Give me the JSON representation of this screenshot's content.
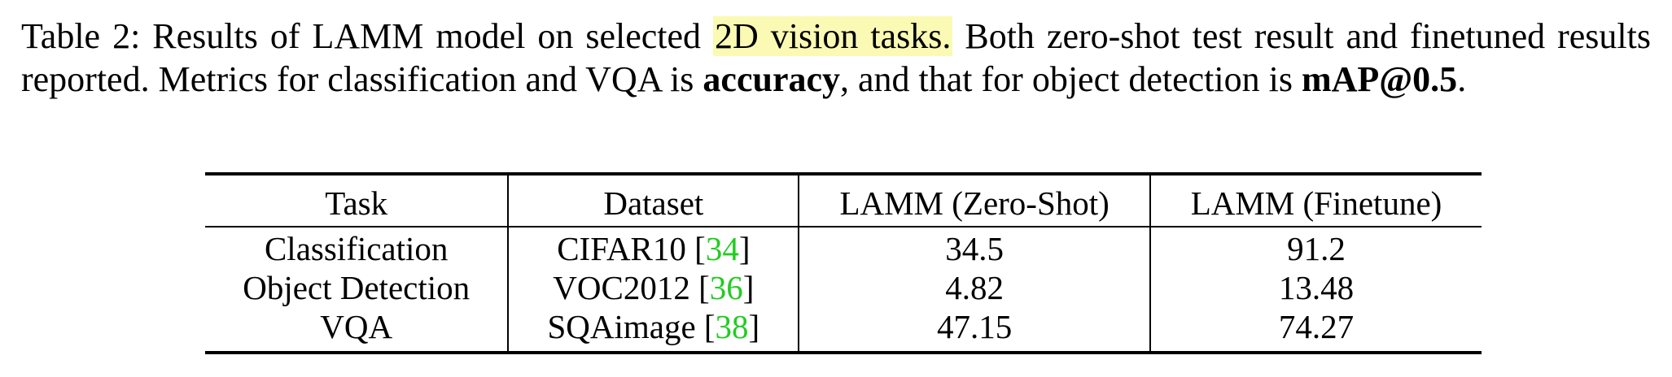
{
  "caption": {
    "label": "Table 2:",
    "text_before_highlight": " Results of LAMM model on selected ",
    "highlight": "2D vision tasks.",
    "text_after_highlight": " Both zero-shot test result and finetuned results reported. Metrics for classification and VQA is ",
    "bold_1": "accuracy",
    "text_middle": ", and that for object detection is ",
    "bold_2": "mAP@0.5",
    "end": "."
  },
  "colors": {
    "highlight": "#fafab4",
    "citation": "#22cc22"
  },
  "table": {
    "headers": [
      "Task",
      "Dataset",
      "LAMM (Zero-Shot)",
      "LAMM (Finetune)"
    ],
    "rows": [
      {
        "task": "Classification",
        "dataset": "CIFAR10",
        "cite": "34",
        "zero_shot": "34.5",
        "finetune": "91.2"
      },
      {
        "task": "Object Detection",
        "dataset": "VOC2012",
        "cite": "36",
        "zero_shot": "4.82",
        "finetune": "13.48"
      },
      {
        "task": "VQA",
        "dataset": "SQAimage",
        "cite": "38",
        "zero_shot": "47.15",
        "finetune": "74.27"
      }
    ]
  }
}
